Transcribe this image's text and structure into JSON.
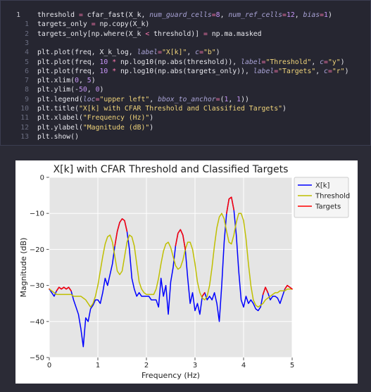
{
  "code": {
    "lines": [
      {
        "number": 1,
        "text": "threshold = cfar_fast(X_k, num_guard_cells=8, num_ref_cells=12, bias=1)"
      },
      {
        "number": 1,
        "text": "targets_only = np.copy(X_k)"
      },
      {
        "number": 2,
        "text": "targets_only[np.where(X_k < threshold)] = np.ma.masked"
      },
      {
        "number": 3
      },
      {
        "number": 4,
        "text": "plt.plot(freq, X_k_log, label=\"X[k]\", c=\"b\")"
      },
      {
        "number": 5,
        "text": "plt.plot(freq, 10 * np.log10(np.abs(threshold)), label=\"Threshold\", c=\"y\")"
      },
      {
        "number": 6,
        "text": "plt.plot(freq, 10 * np.log10(np.abs(targets_only)), label=\"Targets\", c=\"r\")"
      },
      {
        "number": 7,
        "text": "plt.xlim(0, 5)"
      },
      {
        "number": 8,
        "text": "plt.ylim(-50, 0)"
      },
      {
        "number": 9,
        "text": "plt.legend(loc=\"upper left\", bbox_to_anchor=(1, 1))"
      },
      {
        "number": 10,
        "text": "plt.title(\"X[k] with CFAR Threshold and Classified Targets\")"
      },
      {
        "number": 11,
        "text": "plt.xlabel(\"Frequency (Hz)\")"
      },
      {
        "number": 12,
        "text": "plt.ylabel(\"Magnitude (dB)\")"
      },
      {
        "number": 13,
        "text": "plt.show()"
      }
    ]
  },
  "chart_data": {
    "type": "line",
    "title": "X[k] with CFAR Threshold and Classified Targets",
    "x_label": "Frequency (Hz)",
    "y_label": "Magnitude (dB)",
    "xlim": [
      0,
      5
    ],
    "xticks": [
      0,
      1,
      2,
      3,
      4,
      5
    ],
    "ylim": [
      -50,
      0
    ],
    "yticks": [
      {
        "value": -50,
        "label": "−50"
      },
      {
        "value": -40,
        "label": "−40"
      },
      {
        "value": -30,
        "label": "−30"
      },
      {
        "value": -20,
        "label": "−20"
      },
      {
        "value": -10,
        "label": "−10"
      },
      0
    ],
    "grid": true,
    "legend": "outside upper right",
    "x": [
      0,
      0.05,
      0.1,
      0.15,
      0.2,
      0.25,
      0.3,
      0.35,
      0.4,
      0.45,
      0.5,
      0.55,
      0.6,
      0.65,
      0.7,
      0.75,
      0.8,
      0.85,
      0.9,
      0.95,
      1,
      1.05,
      1.1,
      1.15,
      1.2,
      1.25,
      1.3,
      1.35,
      1.4,
      1.45,
      1.5,
      1.55,
      1.6,
      1.65,
      1.7,
      1.75,
      1.8,
      1.85,
      1.9,
      1.95,
      2,
      2.05,
      2.1,
      2.15,
      2.2,
      2.25,
      2.3,
      2.35,
      2.4,
      2.45,
      2.5,
      2.55,
      2.6,
      2.65,
      2.7,
      2.75,
      2.8,
      2.85,
      2.9,
      2.95,
      3,
      3.05,
      3.1,
      3.15,
      3.2,
      3.25,
      3.3,
      3.35,
      3.4,
      3.45,
      3.5,
      3.55,
      3.6,
      3.65,
      3.7,
      3.75,
      3.8,
      3.85,
      3.9,
      3.95,
      4,
      4.05,
      4.1,
      4.15,
      4.2,
      4.25,
      4.3,
      4.35,
      4.4,
      4.45,
      4.5,
      4.55,
      4.6,
      4.65,
      4.7,
      4.75,
      4.8,
      4.85,
      4.9,
      4.95,
      5
    ],
    "series": [
      {
        "name": "X[k]",
        "color": "#0000ff",
        "values": [
          -31,
          -32,
          -33,
          -31.5,
          -30.5,
          -31,
          -30.5,
          -31,
          -30.5,
          -31.5,
          -34,
          -36,
          -38,
          -42,
          -47,
          -39,
          -40,
          -36.5,
          -35.5,
          -34,
          -34,
          -35,
          -32,
          -28,
          -30,
          -27,
          -24,
          -19,
          -15,
          -12.5,
          -11.5,
          -12,
          -15,
          -20,
          -28,
          -31,
          -33,
          -32,
          -33,
          -33,
          -33,
          -33,
          -34,
          -34,
          -34,
          -36,
          -28,
          -33,
          -30,
          -38,
          -29,
          -25,
          -19,
          -15.5,
          -14.5,
          -16,
          -20,
          -28,
          -35,
          -32,
          -37,
          -35,
          -38,
          -33,
          -32,
          -34,
          -33,
          -34,
          -32,
          -35,
          -40,
          -30,
          -18,
          -10,
          -6,
          -5.5,
          -9,
          -16,
          -26,
          -34,
          -36,
          -33,
          -35,
          -34,
          -35,
          -36.5,
          -37,
          -36,
          -32.5,
          -30.5,
          -32,
          -34,
          -33,
          -33,
          -33.5,
          -35,
          -33,
          -31,
          -30,
          -30.5,
          -31
        ]
      },
      {
        "name": "Threshold",
        "color": "#bfbf00",
        "values": [
          -31,
          -31.5,
          -32,
          -32.5,
          -32.5,
          -32.5,
          -32.5,
          -32.5,
          -32.5,
          -32.5,
          -33,
          -33,
          -33,
          -33,
          -33.5,
          -34,
          -35,
          -36,
          -35,
          -33,
          -30,
          -26,
          -22,
          -18.5,
          -16.5,
          -16,
          -18,
          -22,
          -26,
          -27,
          -26,
          -22,
          -18,
          -16,
          -16.5,
          -19,
          -24,
          -29,
          -31,
          -32,
          -32.5,
          -32.5,
          -32.5,
          -32.5,
          -31,
          -28,
          -24,
          -20.5,
          -18.5,
          -18,
          -19.5,
          -22,
          -24.5,
          -25.5,
          -25,
          -23,
          -20,
          -18,
          -18,
          -20,
          -24,
          -29,
          -32,
          -33.5,
          -34,
          -33,
          -30,
          -25,
          -19,
          -14,
          -11,
          -10,
          -11.5,
          -15,
          -18,
          -18.5,
          -16,
          -12.5,
          -10,
          -10,
          -12,
          -17,
          -24,
          -30,
          -34,
          -35.5,
          -36,
          -35.5,
          -35,
          -34,
          -33.5,
          -33,
          -32.5,
          -32,
          -32,
          -31.5,
          -31.5,
          -31.5,
          -31,
          -31,
          -31
        ]
      },
      {
        "name": "Targets",
        "color": "#ff0000",
        "values": [
          -31,
          null,
          null,
          -31.5,
          -30.5,
          -31,
          -30.5,
          -31,
          -30.5,
          -31.5,
          null,
          null,
          null,
          null,
          null,
          null,
          null,
          null,
          null,
          null,
          null,
          null,
          null,
          null,
          null,
          null,
          null,
          -19,
          -15,
          -12.5,
          -11.5,
          -12,
          -15,
          null,
          null,
          null,
          null,
          null,
          null,
          null,
          null,
          null,
          null,
          null,
          null,
          null,
          null,
          null,
          null,
          null,
          null,
          null,
          -19,
          -15.5,
          -14.5,
          -16,
          -20,
          null,
          null,
          null,
          null,
          null,
          null,
          -33,
          -32,
          null,
          null,
          null,
          null,
          null,
          null,
          null,
          null,
          -10,
          -6,
          -5.5,
          -9,
          null,
          null,
          null,
          null,
          null,
          null,
          null,
          null,
          null,
          null,
          null,
          -32.5,
          -30.5,
          -32,
          null,
          null,
          null,
          null,
          null,
          null,
          -31,
          -30,
          -30.5,
          -31
        ]
      }
    ]
  }
}
